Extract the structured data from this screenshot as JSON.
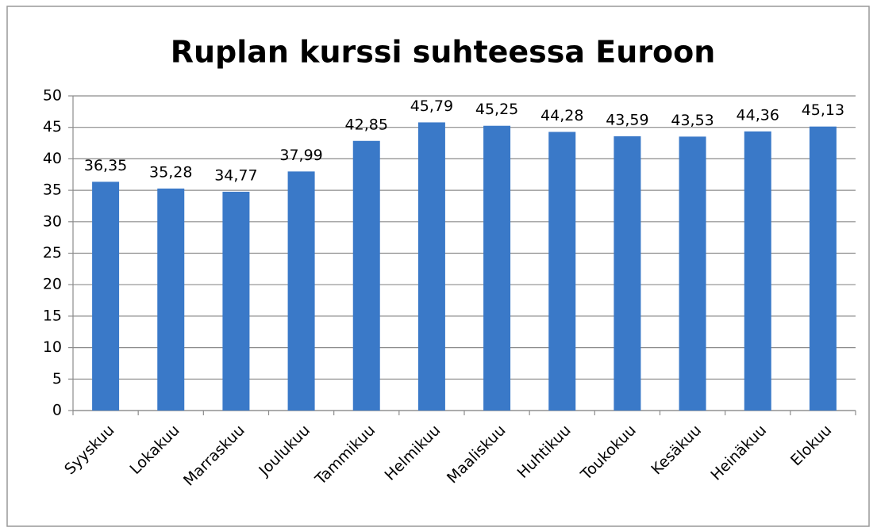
{
  "chart_data": {
    "type": "bar",
    "title": "Ruplan kurssi suhteessa Euroon",
    "categories": [
      "Syyskuu",
      "Lokakuu",
      "Marraskuu",
      "Joulukuu",
      "Tammikuu",
      "Helmikuu",
      "Maaliskuu",
      "Huhtikuu",
      "Toukokuu",
      "Kesäkuu",
      "Heinäkuu",
      "Elokuu"
    ],
    "values": [
      36.35,
      35.28,
      34.77,
      37.99,
      42.85,
      45.79,
      45.25,
      44.28,
      43.59,
      43.53,
      44.36,
      45.13
    ],
    "value_labels": [
      "36,35",
      "35,28",
      "34,77",
      "37,99",
      "42,85",
      "45,79",
      "45,25",
      "44,28",
      "43,59",
      "43,53",
      "44,36",
      "45,13"
    ],
    "color": "#3a79c8",
    "ylim": [
      0,
      50
    ],
    "yticks": [
      0,
      5,
      10,
      15,
      20,
      25,
      30,
      35,
      40,
      45,
      50
    ],
    "grid": true
  }
}
